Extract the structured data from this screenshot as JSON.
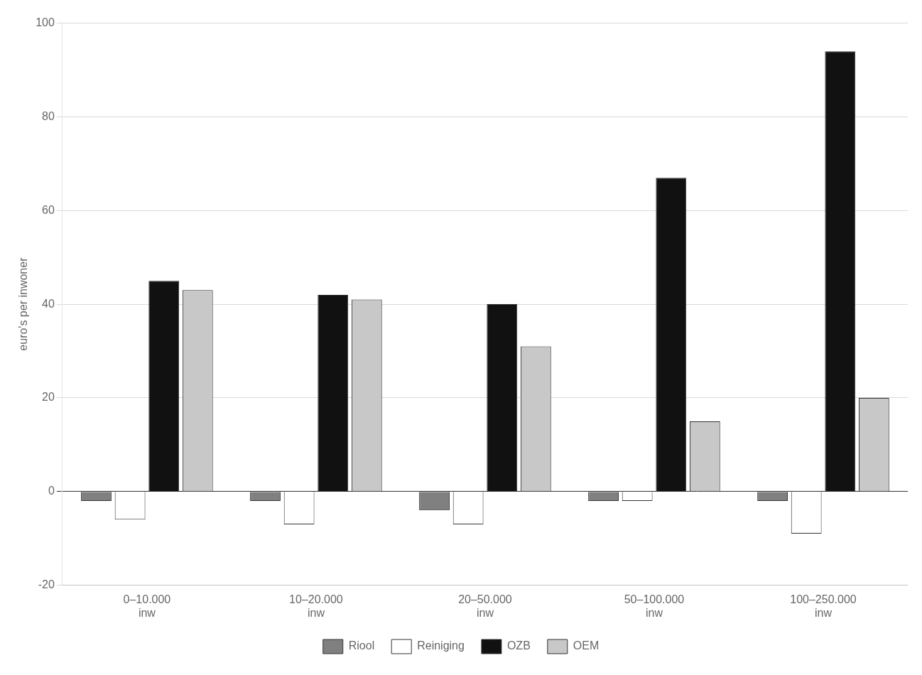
{
  "chart_data": {
    "type": "bar",
    "categories": [
      "0–10.000\ninw",
      "10–20.000\ninw",
      "20–50.000\ninw",
      "50–100.000\ninw",
      "100–250.000\ninw"
    ],
    "series": [
      {
        "name": "Riool",
        "color": "#808080",
        "values": [
          -2,
          -2,
          -4,
          -2,
          -2
        ]
      },
      {
        "name": "Reiniging",
        "color": "#ffffff",
        "values": [
          -6,
          -7,
          -7,
          -2,
          -9
        ]
      },
      {
        "name": "OZB",
        "color": "#111111",
        "values": [
          45,
          42,
          40,
          67,
          94
        ]
      },
      {
        "name": "OEM",
        "color": "#c8c8c8",
        "values": [
          43,
          41,
          31,
          15,
          20
        ]
      }
    ],
    "y_label": "euro's per inwoner",
    "ylim": [
      -20,
      100
    ],
    "yticks": [
      -20,
      0,
      20,
      40,
      60,
      80,
      100
    ],
    "grid": true,
    "legend": "bottom"
  }
}
